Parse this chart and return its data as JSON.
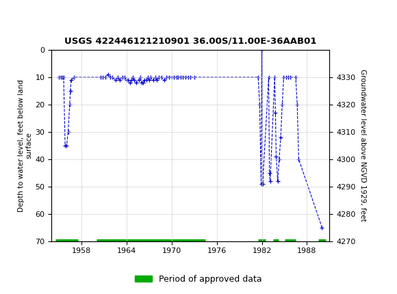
{
  "title": "USGS 422446121210901 36.00S/11.00E-36AAB01",
  "header_bg": "#006847",
  "ylabel_left": "Depth to water level, feet below land\nsurface",
  "ylabel_right": "Groundwater level above NGVD 1929, feet",
  "ylim_left": [
    70,
    0
  ],
  "ylim_right": [
    4270,
    4340
  ],
  "xlim": [
    1954,
    1991
  ],
  "xticks": [
    1958,
    1964,
    1970,
    1976,
    1982,
    1988
  ],
  "yticks_left": [
    0,
    10,
    20,
    30,
    40,
    50,
    60,
    70
  ],
  "yticks_right": [
    4270,
    4280,
    4290,
    4300,
    4310,
    4320,
    4330
  ],
  "line_color": "#0000cc",
  "approved_color": "#00aa00",
  "approved_segments": [
    [
      1954.5,
      1957.5
    ],
    [
      1960.0,
      1974.5
    ],
    [
      1981.5,
      1982.5
    ],
    [
      1983.5,
      1984.2
    ],
    [
      1985.0,
      1986.5
    ],
    [
      1989.5,
      1990.5
    ]
  ],
  "data_x": [
    1955.0,
    1955.2,
    1955.4,
    1955.6,
    1955.8,
    1956.0,
    1956.2,
    1956.4,
    1956.5,
    1956.6,
    1957.0,
    1960.5,
    1960.8,
    1961.2,
    1961.5,
    1961.8,
    1962.1,
    1962.5,
    1962.8,
    1963.1,
    1963.4,
    1963.7,
    1964.0,
    1964.2,
    1964.4,
    1964.6,
    1964.8,
    1965.0,
    1965.3,
    1965.6,
    1965.8,
    1966.0,
    1966.2,
    1966.4,
    1966.6,
    1966.8,
    1967.0,
    1967.2,
    1967.5,
    1967.8,
    1968.0,
    1968.3,
    1968.6,
    1969.0,
    1969.3,
    1969.6,
    1970.0,
    1970.3,
    1970.6,
    1970.8,
    1971.2,
    1971.5,
    1971.8,
    1972.2,
    1972.5,
    1973.0,
    1981.5,
    1981.7,
    1981.9,
    1982.0,
    1982.1,
    1982.9,
    1983.0,
    1983.1,
    1983.7,
    1983.8,
    1983.9,
    1984.1,
    1984.3,
    1984.5,
    1984.7,
    1984.9,
    1985.2,
    1985.5,
    1985.8,
    1986.5,
    1986.7,
    1986.9,
    1990.0
  ],
  "data_y": [
    10,
    10,
    10,
    10,
    35,
    35,
    30,
    20,
    15,
    11,
    10,
    10,
    10,
    10,
    9,
    10,
    10,
    11,
    10,
    11,
    10,
    10,
    11,
    11,
    12,
    11,
    10,
    11,
    12,
    11,
    10,
    12,
    12,
    11,
    11,
    10,
    11,
    10,
    11,
    10,
    11,
    10,
    10,
    11,
    10,
    10,
    10,
    10,
    10,
    10,
    10,
    10,
    10,
    10,
    10,
    10,
    10,
    20,
    49,
    0,
    49,
    10,
    45,
    48,
    10,
    23,
    39,
    48,
    40,
    32,
    20,
    10,
    10,
    10,
    10,
    10,
    20,
    40,
    65
  ]
}
